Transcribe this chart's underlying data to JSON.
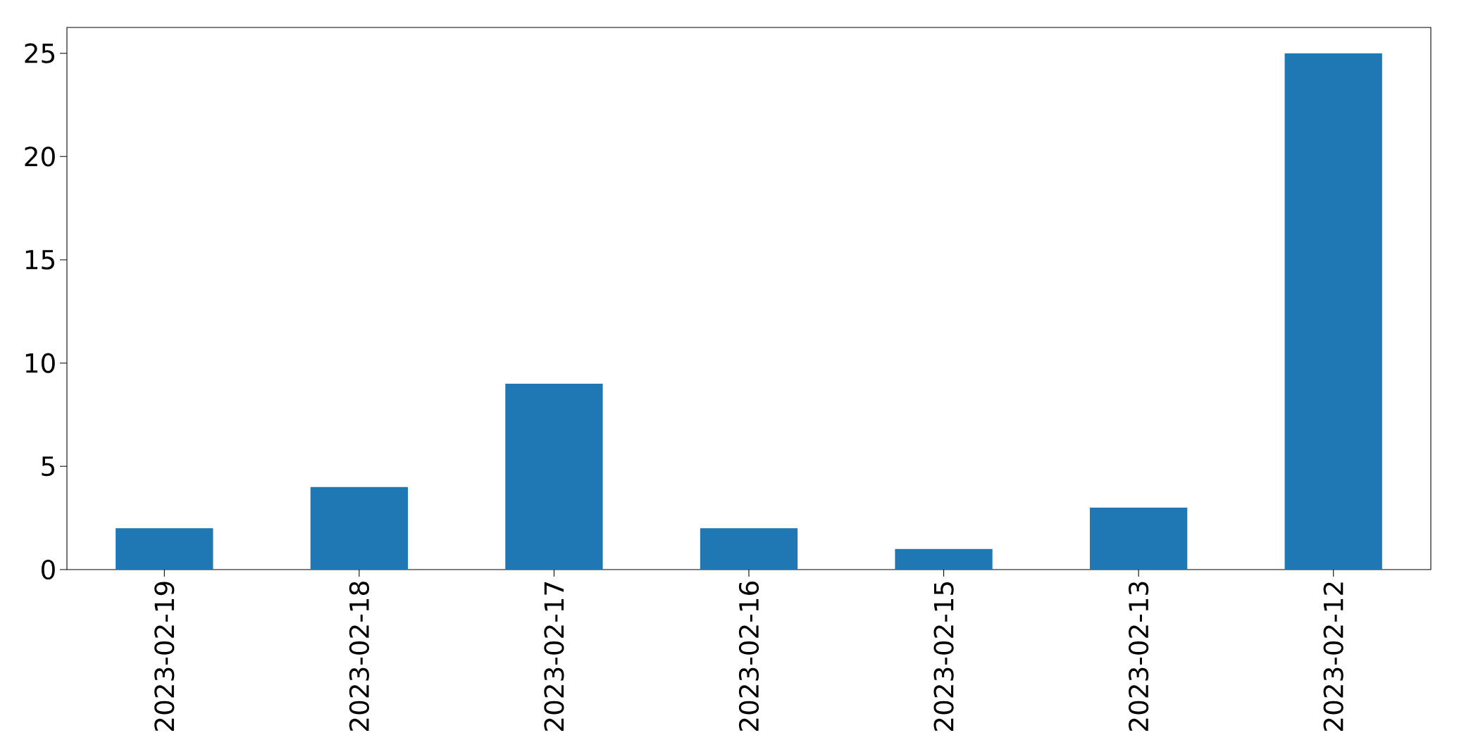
{
  "chart_data": {
    "type": "bar",
    "categories": [
      "2023-02-19",
      "2023-02-18",
      "2023-02-17",
      "2023-02-16",
      "2023-02-15",
      "2023-02-13",
      "2023-02-12"
    ],
    "values": [
      2,
      4,
      9,
      2,
      1,
      3,
      25
    ],
    "color": "#1f77b4",
    "ylim": [
      0,
      26.25
    ],
    "yticks": [
      0,
      5,
      10,
      15,
      20,
      25
    ]
  }
}
